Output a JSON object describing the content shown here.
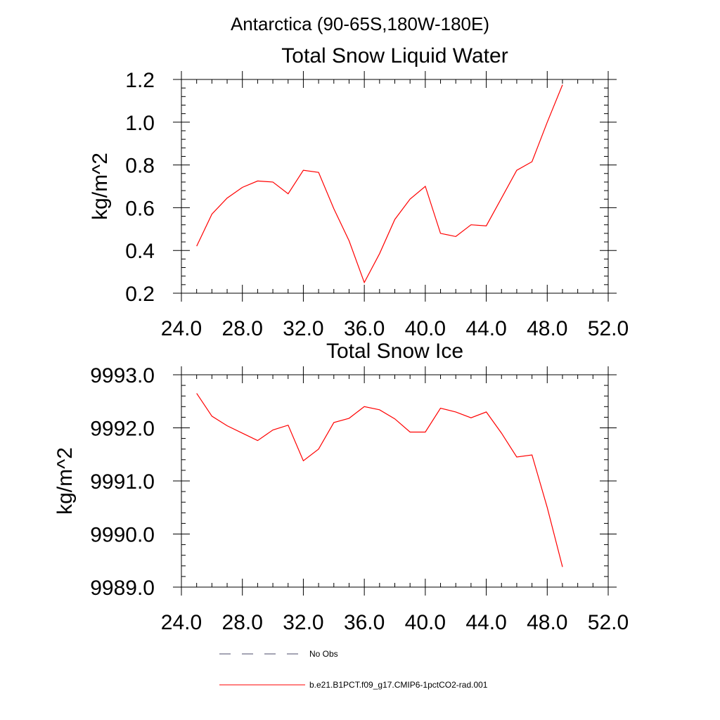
{
  "figure": {
    "suptitle": "Antarctica (90-65S,180W-180E)"
  },
  "chart_data": [
    {
      "type": "line",
      "title": "Total Snow Liquid Water",
      "ylabel": "kg/m^2",
      "xlabel": "",
      "xlim": [
        24,
        52
      ],
      "ylim": [
        0.2,
        1.2
      ],
      "x_ticks": [
        24,
        28,
        32,
        36,
        40,
        44,
        48,
        52
      ],
      "x_tick_labels": [
        "24.0",
        "28.0",
        "32.0",
        "36.0",
        "40.0",
        "44.0",
        "48.0",
        "52.0"
      ],
      "y_ticks": [
        0.2,
        0.4,
        0.6,
        0.8,
        1.0,
        1.2
      ],
      "y_tick_labels": [
        "0.2",
        "0.4",
        "0.6",
        "0.8",
        "1.0",
        "1.2"
      ],
      "grid": false,
      "series": [
        {
          "name": "b.e21.B1PCT.f09_g17.CMIP6-1pctCO2-rad.001",
          "color": "#ff0000",
          "x": [
            25,
            26,
            27,
            28,
            29,
            30,
            31,
            32,
            33,
            34,
            35,
            36,
            37,
            38,
            39,
            40,
            41,
            42,
            43,
            44,
            45,
            46,
            47,
            48,
            49
          ],
          "y": [
            0.42,
            0.57,
            0.645,
            0.695,
            0.725,
            0.72,
            0.665,
            0.775,
            0.765,
            0.595,
            0.445,
            0.25,
            0.385,
            0.545,
            0.64,
            0.7,
            0.48,
            0.465,
            0.52,
            0.515,
            0.645,
            0.775,
            0.815,
            1.0,
            1.175
          ]
        }
      ]
    },
    {
      "type": "line",
      "title": "Total Snow Ice",
      "ylabel": "kg/m^2",
      "xlabel": "",
      "xlim": [
        24,
        52
      ],
      "ylim": [
        9989.0,
        9993.0
      ],
      "x_ticks": [
        24,
        28,
        32,
        36,
        40,
        44,
        48,
        52
      ],
      "x_tick_labels": [
        "24.0",
        "28.0",
        "32.0",
        "36.0",
        "40.0",
        "44.0",
        "48.0",
        "52.0"
      ],
      "y_ticks": [
        9989.0,
        9990.0,
        9991.0,
        9992.0,
        9993.0
      ],
      "y_tick_labels": [
        "9989.0",
        "9990.0",
        "9991.0",
        "9992.0",
        "9993.0"
      ],
      "grid": false,
      "series": [
        {
          "name": "b.e21.B1PCT.f09_g17.CMIP6-1pctCO2-rad.001",
          "color": "#ff0000",
          "x": [
            25,
            26,
            27,
            28,
            29,
            30,
            31,
            32,
            33,
            34,
            35,
            36,
            37,
            38,
            39,
            40,
            41,
            42,
            43,
            44,
            45,
            46,
            47,
            48,
            49
          ],
          "y": [
            9992.65,
            9992.22,
            9992.04,
            9991.9,
            9991.76,
            9991.96,
            9992.05,
            9991.38,
            9991.6,
            9992.1,
            9992.18,
            9992.4,
            9992.34,
            9992.17,
            9991.92,
            9991.92,
            9992.37,
            9992.3,
            9992.19,
            9992.3,
            9991.9,
            9991.45,
            9991.49,
            9990.5,
            9989.38
          ]
        }
      ]
    }
  ],
  "legend": {
    "placement": "bottom",
    "entries": [
      {
        "label": "No Obs",
        "color": "#4a4a6a",
        "style": "dashed"
      },
      {
        "label": "b.e21.B1PCT.f09_g17.CMIP6-1pctCO2-rad.001",
        "color": "#ff0000",
        "style": "solid"
      }
    ]
  }
}
